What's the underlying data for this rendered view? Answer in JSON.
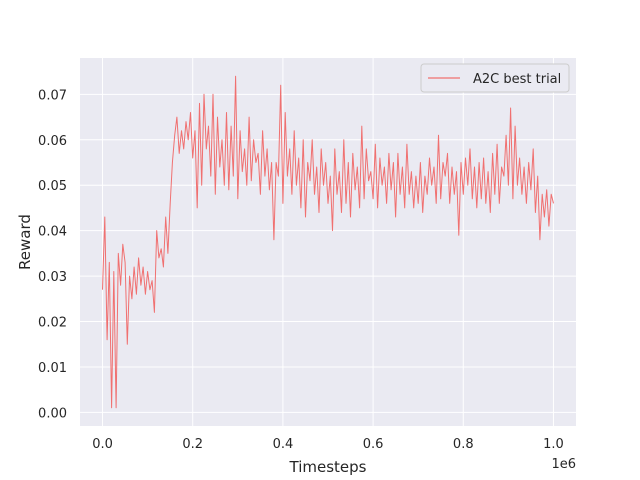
{
  "chart_data": {
    "type": "line",
    "xlabel": "Timesteps",
    "ylabel": "Reward",
    "x_offset_label": "1e6",
    "xlim": [
      -50000,
      1050000
    ],
    "ylim": [
      -0.003,
      0.078
    ],
    "xticks": [
      0,
      200000,
      400000,
      600000,
      800000,
      1000000
    ],
    "xtick_labels": [
      "0.0",
      "0.2",
      "0.4",
      "0.6",
      "0.8",
      "1.0"
    ],
    "yticks": [
      0.0,
      0.01,
      0.02,
      0.03,
      0.04,
      0.05,
      0.06,
      0.07
    ],
    "ytick_labels": [
      "0.00",
      "0.01",
      "0.02",
      "0.03",
      "0.04",
      "0.05",
      "0.06",
      "0.07"
    ],
    "grid": true,
    "legend_position": "top-right",
    "series": [
      {
        "name": "A2C best trial",
        "color": "#f07070",
        "x": [
          0,
          5000,
          10000,
          15000,
          20000,
          25000,
          30000,
          35000,
          40000,
          45000,
          50000,
          55000,
          60000,
          65000,
          70000,
          75000,
          80000,
          85000,
          90000,
          95000,
          100000,
          105000,
          110000,
          115000,
          120000,
          125000,
          130000,
          135000,
          140000,
          145000,
          150000,
          155000,
          160000,
          165000,
          170000,
          175000,
          180000,
          185000,
          190000,
          195000,
          200000,
          205000,
          210000,
          215000,
          220000,
          225000,
          230000,
          235000,
          240000,
          245000,
          250000,
          255000,
          260000,
          265000,
          270000,
          275000,
          280000,
          285000,
          290000,
          295000,
          300000,
          305000,
          310000,
          315000,
          320000,
          325000,
          330000,
          335000,
          340000,
          345000,
          350000,
          355000,
          360000,
          365000,
          370000,
          375000,
          380000,
          385000,
          390000,
          395000,
          400000,
          405000,
          410000,
          415000,
          420000,
          425000,
          430000,
          435000,
          440000,
          445000,
          450000,
          455000,
          460000,
          465000,
          470000,
          475000,
          480000,
          485000,
          490000,
          495000,
          500000,
          505000,
          510000,
          515000,
          520000,
          525000,
          530000,
          535000,
          540000,
          545000,
          550000,
          555000,
          560000,
          565000,
          570000,
          575000,
          580000,
          585000,
          590000,
          595000,
          600000,
          605000,
          610000,
          615000,
          620000,
          625000,
          630000,
          635000,
          640000,
          645000,
          650000,
          655000,
          660000,
          665000,
          670000,
          675000,
          680000,
          685000,
          690000,
          695000,
          700000,
          705000,
          710000,
          715000,
          720000,
          725000,
          730000,
          735000,
          740000,
          745000,
          750000,
          755000,
          760000,
          765000,
          770000,
          775000,
          780000,
          785000,
          790000,
          795000,
          800000,
          805000,
          810000,
          815000,
          820000,
          825000,
          830000,
          835000,
          840000,
          845000,
          850000,
          855000,
          860000,
          865000,
          870000,
          875000,
          880000,
          885000,
          890000,
          895000,
          900000,
          905000,
          910000,
          915000,
          920000,
          925000,
          930000,
          935000,
          940000,
          945000,
          950000,
          955000,
          960000,
          965000,
          970000,
          975000,
          980000,
          985000,
          990000,
          995000,
          1000000
        ],
        "values": [
          0.027,
          0.043,
          0.016,
          0.033,
          0.001,
          0.031,
          0.001,
          0.035,
          0.028,
          0.037,
          0.033,
          0.015,
          0.03,
          0.025,
          0.032,
          0.026,
          0.034,
          0.028,
          0.032,
          0.026,
          0.031,
          0.027,
          0.029,
          0.022,
          0.04,
          0.034,
          0.036,
          0.032,
          0.043,
          0.035,
          0.046,
          0.055,
          0.061,
          0.065,
          0.057,
          0.062,
          0.058,
          0.064,
          0.06,
          0.066,
          0.056,
          0.062,
          0.045,
          0.068,
          0.05,
          0.07,
          0.058,
          0.063,
          0.052,
          0.07,
          0.048,
          0.065,
          0.054,
          0.06,
          0.05,
          0.066,
          0.049,
          0.063,
          0.052,
          0.074,
          0.047,
          0.062,
          0.053,
          0.058,
          0.05,
          0.065,
          0.051,
          0.06,
          0.055,
          0.057,
          0.048,
          0.062,
          0.052,
          0.058,
          0.049,
          0.055,
          0.038,
          0.055,
          0.052,
          0.072,
          0.046,
          0.066,
          0.052,
          0.058,
          0.048,
          0.062,
          0.05,
          0.056,
          0.045,
          0.06,
          0.043,
          0.055,
          0.051,
          0.06,
          0.048,
          0.054,
          0.044,
          0.058,
          0.05,
          0.055,
          0.046,
          0.052,
          0.04,
          0.058,
          0.048,
          0.053,
          0.044,
          0.06,
          0.046,
          0.055,
          0.043,
          0.057,
          0.049,
          0.054,
          0.045,
          0.063,
          0.047,
          0.058,
          0.051,
          0.053,
          0.047,
          0.059,
          0.045,
          0.056,
          0.05,
          0.054,
          0.046,
          0.057,
          0.049,
          0.055,
          0.043,
          0.057,
          0.048,
          0.054,
          0.045,
          0.059,
          0.048,
          0.053,
          0.045,
          0.052,
          0.046,
          0.055,
          0.044,
          0.052,
          0.048,
          0.056,
          0.05,
          0.054,
          0.046,
          0.061,
          0.047,
          0.055,
          0.052,
          0.057,
          0.046,
          0.054,
          0.048,
          0.053,
          0.039,
          0.055,
          0.048,
          0.056,
          0.05,
          0.058,
          0.047,
          0.054,
          0.045,
          0.055,
          0.047,
          0.056,
          0.046,
          0.053,
          0.044,
          0.057,
          0.048,
          0.059,
          0.046,
          0.054,
          0.052,
          0.061,
          0.05,
          0.067,
          0.047,
          0.063,
          0.05,
          0.056,
          0.048,
          0.054,
          0.046,
          0.055,
          0.049,
          0.058,
          0.044,
          0.052,
          0.038,
          0.048,
          0.043,
          0.049,
          0.041,
          0.048,
          0.046
        ]
      }
    ]
  }
}
